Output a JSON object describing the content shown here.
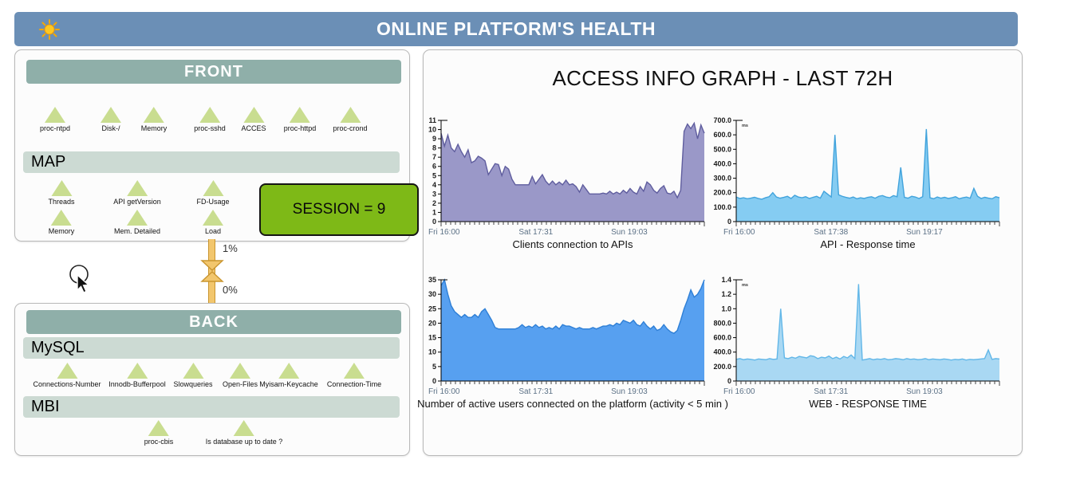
{
  "header": {
    "title": "ONLINE PLATFORM'S HEALTH",
    "icon": "sun-icon"
  },
  "front_panel": {
    "title": "FRONT",
    "sensors": [
      "proc-ntpd",
      "Disk-/",
      "Memory",
      "proc-sshd",
      "ACCES",
      "proc-httpd",
      "proc-crond"
    ],
    "map": {
      "title": "MAP",
      "sensors_row1": [
        "Threads",
        "API getVersion",
        "FD-Usage"
      ],
      "sensors_row2": [
        "Memory",
        "Mem. Detailed",
        "Load"
      ]
    },
    "session_box": "SESSION = 9"
  },
  "link": {
    "top_label": "1%",
    "bottom_label": "0%"
  },
  "back_panel": {
    "title": "BACK",
    "mysql": {
      "title": "MySQL",
      "sensors": [
        "Connections-Number",
        "Innodb-Bufferpool",
        "Slowqueries",
        "Open-Files",
        "Myisam-Keycache",
        "Connection-Time"
      ]
    },
    "mbi": {
      "title": "MBI",
      "sensors": [
        "proc-cbis",
        "Is database up to date ?"
      ]
    }
  },
  "graphs_panel": {
    "title": "ACCESS INFO GRAPH - LAST 72H"
  },
  "colors": {
    "header_bg": "#6b8fb6",
    "section_header_bg": "#8fafa9",
    "subsection_bg": "#ccdad3",
    "session_green": "#7eb917",
    "sensor_triangle": "#c9dd90",
    "link_fill": "#f2c66d",
    "link_border": "#c9952f"
  },
  "chart_data": [
    {
      "type": "area",
      "title": "Clients connection to APIs",
      "unit": "",
      "ylim": [
        0,
        11
      ],
      "ytick_values": [
        0,
        1,
        2,
        3,
        4,
        5,
        6,
        7,
        8,
        9,
        10,
        11
      ],
      "ytick_labels": [
        "0",
        "1",
        "2",
        "3",
        "4",
        "5",
        "6",
        "7",
        "8",
        "9",
        "10",
        "11"
      ],
      "xticks": [
        {
          "pos": 0.0,
          "label": "Fri 16:00",
          "anchor": "start"
        },
        {
          "pos": 0.36,
          "label": "Sat 17:31",
          "anchor": "middle"
        },
        {
          "pos": 0.715,
          "label": "Sun 19:03",
          "anchor": "middle"
        }
      ],
      "fill": "#9a98c8",
      "stroke": "#5f5d9e",
      "values": [
        9.6,
        8.2,
        9.4,
        8.0,
        7.6,
        8.4,
        7.6,
        7.0,
        7.8,
        6.4,
        6.6,
        7.1,
        6.9,
        6.6,
        5.1,
        5.7,
        6.3,
        6.2,
        5.0,
        6.0,
        5.7,
        4.6,
        4.0,
        4.0,
        4.0,
        4.0,
        4.0,
        4.9,
        4.1,
        4.6,
        5.1,
        4.4,
        4.0,
        4.4,
        4.0,
        4.3,
        4.0,
        4.5,
        4.0,
        4.1,
        3.8,
        3.2,
        4.0,
        3.5,
        3.0,
        3.0,
        3.0,
        3.0,
        3.1,
        3.0,
        3.3,
        3.0,
        3.2,
        3.0,
        3.4,
        3.1,
        3.6,
        3.2,
        3.0,
        3.8,
        3.3,
        4.3,
        4.0,
        3.4,
        3.1,
        3.6,
        3.9,
        3.1,
        3.0,
        3.3,
        2.6,
        3.4,
        9.8,
        10.6,
        10.1,
        10.7,
        9.0,
        10.5,
        9.6
      ]
    },
    {
      "type": "area",
      "title": "API - Response time",
      "unit": "ms",
      "ylim": [
        0,
        700
      ],
      "ytick_values": [
        0,
        100,
        200,
        300,
        400,
        500,
        600,
        700
      ],
      "ytick_labels": [
        "0",
        "100.0",
        "200.0",
        "300.0",
        "400.0",
        "500.0",
        "600.0",
        "700.0"
      ],
      "xticks": [
        {
          "pos": 0.0,
          "label": "Fri 16:00",
          "anchor": "start"
        },
        {
          "pos": 0.36,
          "label": "Sat 17:38",
          "anchor": "middle"
        },
        {
          "pos": 0.715,
          "label": "Sun 19:17",
          "anchor": "middle"
        }
      ],
      "fill": "#85ccf2",
      "stroke": "#41a3dc",
      "values": [
        170,
        160,
        165,
        158,
        162,
        168,
        160,
        155,
        165,
        172,
        200,
        170,
        162,
        168,
        175,
        160,
        182,
        170,
        165,
        172,
        160,
        168,
        175,
        162,
        210,
        190,
        170,
        600,
        185,
        175,
        168,
        162,
        170,
        158,
        165,
        160,
        168,
        172,
        162,
        175,
        180,
        170,
        165,
        180,
        172,
        375,
        168,
        162,
        175,
        170,
        160,
        172,
        640,
        165,
        158,
        170,
        162,
        168,
        160,
        165,
        172,
        158,
        165,
        170,
        162,
        230,
        175,
        160,
        168,
        162,
        158,
        172,
        165
      ]
    },
    {
      "type": "area",
      "title": "Number of active users connected on the platform (activity < 5 min )",
      "unit": "",
      "ylim": [
        0,
        35
      ],
      "ytick_values": [
        0,
        5,
        10,
        15,
        20,
        25,
        30,
        35
      ],
      "ytick_labels": [
        "0",
        "5",
        "10",
        "15",
        "20",
        "25",
        "30",
        "35"
      ],
      "xticks": [
        {
          "pos": 0.0,
          "label": "Fri 16:00",
          "anchor": "start"
        },
        {
          "pos": 0.36,
          "label": "Sat 17:31",
          "anchor": "middle"
        },
        {
          "pos": 0.715,
          "label": "Sun 19:03",
          "anchor": "middle"
        }
      ],
      "fill": "#57a0f0",
      "stroke": "#2e7fd6",
      "values": [
        33,
        35,
        30,
        26,
        24,
        23,
        22,
        23,
        22,
        22,
        23,
        22,
        24,
        25,
        23,
        21,
        18.5,
        18,
        18,
        18,
        18,
        18,
        18,
        18.5,
        19.5,
        18.5,
        19,
        18.5,
        19.5,
        18.5,
        19,
        18,
        18.5,
        18,
        19,
        18,
        19.5,
        19,
        19,
        18.5,
        18,
        18.5,
        18,
        18,
        18,
        18.5,
        18,
        18.5,
        19,
        19,
        19.5,
        19,
        20,
        19.5,
        21,
        20.5,
        20,
        21,
        19.5,
        19,
        20.5,
        19,
        18,
        19,
        17.5,
        18,
        19.5,
        18,
        17,
        16.5,
        17.5,
        21,
        25,
        28,
        31.5,
        29,
        30,
        32,
        35
      ]
    },
    {
      "type": "area",
      "title": "WEB - RESPONSE TIME",
      "unit": "ms",
      "ylim": [
        0,
        1400
      ],
      "ytick_values": [
        0,
        200,
        400,
        600,
        800,
        1000,
        1200,
        1400
      ],
      "ytick_labels": [
        "0",
        "200.0",
        "400.0",
        "600.0",
        "800.0",
        "1.0",
        "1.2",
        "1.4"
      ],
      "xticks": [
        {
          "pos": 0.0,
          "label": "Fri 16:00",
          "anchor": "start"
        },
        {
          "pos": 0.36,
          "label": "Sat 17:31",
          "anchor": "middle"
        },
        {
          "pos": 0.715,
          "label": "Sun 19:03",
          "anchor": "middle"
        }
      ],
      "fill": "#a9d8f3",
      "stroke": "#62b7e8",
      "values": [
        300,
        310,
        295,
        305,
        300,
        290,
        305,
        300,
        295,
        310,
        300,
        305,
        1000,
        320,
        310,
        330,
        315,
        340,
        330,
        320,
        350,
        340,
        310,
        330,
        320,
        345,
        310,
        330,
        305,
        340,
        320,
        360,
        310,
        1340,
        290,
        300,
        310,
        295,
        305,
        300,
        310,
        295,
        300,
        310,
        305,
        295,
        310,
        300,
        305,
        295,
        300,
        310,
        295,
        305,
        300,
        295,
        305,
        300,
        290,
        300,
        295,
        305,
        290,
        300,
        295,
        300,
        305,
        310,
        430,
        300,
        310,
        305
      ]
    }
  ]
}
